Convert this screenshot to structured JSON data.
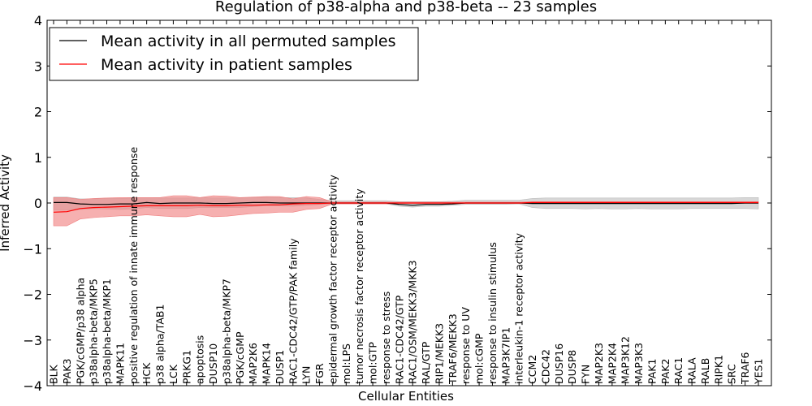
{
  "chart_data": {
    "type": "line",
    "title": "Regulation of p38-alpha and p38-beta -- 23 samples",
    "xlabel": "Cellular Entities",
    "ylabel": "Inferred Activity",
    "ylim": [
      -4,
      4
    ],
    "yticks": [
      -4,
      -3,
      -2,
      -1,
      0,
      1,
      2,
      3,
      4
    ],
    "ytick_labels": [
      "−4",
      "−3",
      "−2",
      "−1",
      "0",
      "1",
      "2",
      "3",
      "4"
    ],
    "legend_position": "top-left",
    "categories": [
      "BLK",
      "PAK3",
      "PGK/cGMP/p38 alpha",
      "p38alpha-beta/MKP5",
      "p38alpha-beta/MKP1",
      "MAPK11",
      "positive regulation of innate immune response",
      "HCK",
      "p38 alpha/TAB1",
      "LCK",
      "PRKG1",
      "apoptosis",
      "DUSP10",
      "p38alpha-beta/MKP7",
      "PGK/cGMP",
      "MAP2K6",
      "MAPK14",
      "DUSP1",
      "RAC1-CDC42/GTP/PAK family",
      "LYN",
      "FGR",
      "epidermal growth factor receptor activity",
      "mol:LPS",
      "tumor necrosis factor receptor activity",
      "mol:GTP",
      "response to stress",
      "RAC1-CDC42/GTP",
      "RAC1/OSM/MEKK3/MKK3",
      "RAL/GTP",
      "RIP1/MEKK3",
      "TRAF6/MEKK3",
      "response to UV",
      "mol:cGMP",
      "response to insulin stimulus",
      "MAP3K7IP1",
      "interleukin-1 receptor activity",
      "CCM2",
      "CDC42",
      "DUSP16",
      "DUSP8",
      "FYN",
      "MAP2K3",
      "MAP2K4",
      "MAP3K12",
      "MAP3K3",
      "PAK1",
      "PAK2",
      "RAC1",
      "RALA",
      "RALB",
      "RIPK1",
      "SRC",
      "TRAF6",
      "YES1"
    ],
    "series": [
      {
        "name": "Mean activity in all permuted samples",
        "color": "#000000",
        "band_color": "#bdbdbd",
        "values": [
          0.01,
          0.01,
          -0.02,
          -0.03,
          -0.03,
          -0.02,
          -0.02,
          0.01,
          -0.01,
          0.0,
          0.0,
          0.0,
          -0.01,
          -0.01,
          0.0,
          0.01,
          0.01,
          0.0,
          0.0,
          0.0,
          0.0,
          0.0,
          0.0,
          0.0,
          0.0,
          0.0,
          -0.03,
          -0.05,
          -0.03,
          -0.03,
          -0.02,
          0.0,
          0.0,
          0.0,
          0.0,
          0.0,
          -0.01,
          -0.01,
          -0.01,
          -0.01,
          -0.01,
          -0.01,
          -0.01,
          -0.01,
          -0.01,
          -0.01,
          -0.01,
          -0.01,
          -0.01,
          -0.01,
          -0.01,
          -0.01,
          0.0,
          0.0
        ],
        "band_low": [
          -0.16,
          -0.16,
          -0.14,
          -0.12,
          -0.13,
          -0.14,
          -0.13,
          -0.1,
          -0.12,
          -0.12,
          -0.12,
          -0.1,
          -0.1,
          -0.1,
          -0.1,
          -0.08,
          -0.06,
          -0.06,
          -0.07,
          -0.05,
          -0.03,
          -0.02,
          -0.02,
          -0.02,
          -0.02,
          -0.02,
          -0.07,
          -0.09,
          -0.07,
          -0.07,
          -0.05,
          -0.03,
          -0.03,
          -0.03,
          -0.03,
          -0.02,
          -0.1,
          -0.12,
          -0.12,
          -0.12,
          -0.13,
          -0.12,
          -0.13,
          -0.13,
          -0.12,
          -0.13,
          -0.13,
          -0.13,
          -0.12,
          -0.12,
          -0.12,
          -0.12,
          -0.12,
          -0.13
        ],
        "band_high": [
          0.13,
          0.13,
          0.09,
          0.09,
          0.1,
          0.1,
          0.11,
          0.12,
          0.11,
          0.11,
          0.11,
          0.12,
          0.11,
          0.11,
          0.11,
          0.12,
          0.13,
          0.12,
          0.12,
          0.11,
          0.08,
          0.05,
          0.05,
          0.05,
          0.05,
          0.05,
          0.03,
          0.03,
          0.03,
          0.03,
          0.04,
          0.06,
          0.06,
          0.06,
          0.06,
          0.06,
          0.1,
          0.11,
          0.11,
          0.11,
          0.11,
          0.11,
          0.11,
          0.11,
          0.11,
          0.11,
          0.11,
          0.11,
          0.11,
          0.11,
          0.11,
          0.11,
          0.12,
          0.12
        ]
      },
      {
        "name": "Mean activity in patient samples",
        "color": "#ff0000",
        "band_color": "#f08080",
        "values": [
          -0.2,
          -0.19,
          -0.12,
          -0.1,
          -0.09,
          -0.08,
          -0.07,
          -0.06,
          -0.06,
          -0.06,
          -0.06,
          -0.05,
          -0.06,
          -0.06,
          -0.05,
          -0.05,
          -0.04,
          -0.04,
          -0.02,
          -0.01,
          -0.01,
          0.0,
          0.0,
          0.0,
          0.0,
          0.0,
          0.0,
          0.0,
          0.0,
          0.0,
          0.0,
          0.0,
          0.0,
          0.0,
          0.0,
          0.0,
          0.01,
          0.01,
          0.01,
          0.01,
          0.01,
          0.01,
          0.01,
          0.01,
          0.01,
          0.01,
          0.01,
          0.01,
          0.01,
          0.01,
          0.01,
          0.01,
          0.01,
          0.01
        ],
        "band_low": [
          -0.5,
          -0.5,
          -0.35,
          -0.32,
          -0.3,
          -0.28,
          -0.28,
          -0.26,
          -0.28,
          -0.3,
          -0.3,
          -0.25,
          -0.3,
          -0.29,
          -0.26,
          -0.23,
          -0.22,
          -0.2,
          -0.2,
          -0.14,
          -0.12,
          -0.02,
          -0.02,
          -0.02,
          -0.02,
          -0.02,
          -0.01,
          -0.01,
          -0.01,
          -0.01,
          -0.01,
          -0.01,
          -0.01,
          -0.01,
          -0.01,
          -0.01,
          -0.01,
          -0.01,
          -0.01,
          -0.01,
          -0.01,
          -0.01,
          -0.01,
          -0.01,
          -0.01,
          -0.01,
          -0.01,
          -0.01,
          -0.01,
          -0.01,
          -0.01,
          -0.01,
          -0.01,
          -0.01
        ],
        "band_high": [
          0.12,
          0.12,
          0.08,
          0.1,
          0.11,
          0.12,
          0.12,
          0.12,
          0.12,
          0.16,
          0.16,
          0.12,
          0.16,
          0.15,
          0.12,
          0.13,
          0.14,
          0.14,
          0.09,
          0.14,
          0.12,
          0.02,
          0.02,
          0.02,
          0.02,
          0.02,
          0.02,
          0.02,
          0.02,
          0.02,
          0.02,
          0.02,
          0.02,
          0.02,
          0.02,
          0.02,
          0.03,
          0.03,
          0.03,
          0.03,
          0.03,
          0.03,
          0.03,
          0.03,
          0.03,
          0.03,
          0.03,
          0.03,
          0.03,
          0.03,
          0.03,
          0.03,
          0.03,
          0.03
        ]
      }
    ]
  }
}
